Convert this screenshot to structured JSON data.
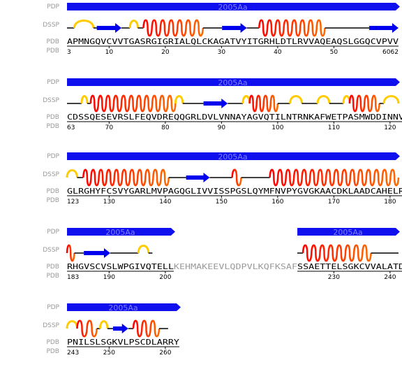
{
  "colors": {
    "domain_bar": "#1010ee",
    "domain_label": "#7f7fff",
    "helix_stops": [
      "#ff0000",
      "#ff6a00"
    ],
    "turn": "#ffcc00",
    "strand": "#0000ee",
    "coil": "#000000",
    "track_label": "#999999"
  },
  "track_labels": {
    "pdp": "PDP",
    "dssp": "DSSP",
    "pdb": "PDB"
  },
  "blocks": [
    {
      "segments": [
        {
          "seq": "APMNGQVCVVTGASRGIGRIALQLCKAGATVYITGRHLDTLRVVAQEAQSLGGQCVPVV",
          "gap": false
        }
      ],
      "numbers": [
        {
          "text": "3",
          "col": 0,
          "anchor": "start"
        },
        {
          "text": "10",
          "col": 7,
          "anchor": "middle"
        },
        {
          "text": "20",
          "col": 17,
          "anchor": "middle"
        },
        {
          "text": "30",
          "col": 27,
          "anchor": "middle"
        },
        {
          "text": "40",
          "col": 37,
          "anchor": "middle"
        },
        {
          "text": "50",
          "col": 47,
          "anchor": "middle"
        },
        {
          "text": "6062",
          "col": 58.5,
          "anchor": "end"
        }
      ],
      "domains": [
        {
          "label": "2005Aa",
          "start": 0,
          "end": 59
        }
      ],
      "dssp": [
        {
          "type": "coil",
          "start": 0,
          "end": 1.3
        },
        {
          "type": "turn",
          "start": 1.3,
          "end": 4.7
        },
        {
          "type": "coil",
          "start": 4.7,
          "end": 5.3
        },
        {
          "type": "strand",
          "start": 5.3,
          "end": 9.7
        },
        {
          "type": "coil",
          "start": 9.7,
          "end": 11.2
        },
        {
          "type": "turn",
          "start": 11.2,
          "end": 12.6
        },
        {
          "type": "coil",
          "start": 12.6,
          "end": 13.6
        },
        {
          "type": "helix",
          "start": 13.6,
          "end": 24.2
        },
        {
          "type": "coil",
          "start": 24.2,
          "end": 27.6
        },
        {
          "type": "strand",
          "start": 27.6,
          "end": 32.0
        },
        {
          "type": "coil",
          "start": 32.0,
          "end": 34.2
        },
        {
          "type": "helix",
          "start": 34.2,
          "end": 45.9
        },
        {
          "type": "coil",
          "start": 45.9,
          "end": 53.8
        },
        {
          "type": "strand",
          "start": 53.8,
          "end": 59.0
        }
      ]
    },
    {
      "segments": [
        {
          "seq": "CDSSQESEVRSLFEQVDREQQGRLDVLVNNAYAGVQTILNTRNKAFWETPASMWDDINNV",
          "gap": false
        }
      ],
      "numbers": [
        {
          "text": "63",
          "col": 0,
          "anchor": "start"
        },
        {
          "text": "70",
          "col": 7,
          "anchor": "middle"
        },
        {
          "text": "80",
          "col": 17,
          "anchor": "middle"
        },
        {
          "text": "90",
          "col": 27,
          "anchor": "middle"
        },
        {
          "text": "100",
          "col": 37,
          "anchor": "middle"
        },
        {
          "text": "110",
          "col": 47,
          "anchor": "middle"
        },
        {
          "text": "120",
          "col": 57,
          "anchor": "middle"
        }
      ],
      "domains": [
        {
          "label": "2005Aa",
          "start": 0,
          "end": 59
        }
      ],
      "dssp": [
        {
          "type": "coil",
          "start": 0,
          "end": 2.6
        },
        {
          "type": "turn",
          "start": 2.6,
          "end": 3.6
        },
        {
          "type": "coil",
          "start": 3.6,
          "end": 4.2
        },
        {
          "type": "helix",
          "start": 4.2,
          "end": 19.3
        },
        {
          "type": "turn",
          "start": 19.3,
          "end": 20.6
        },
        {
          "type": "coil",
          "start": 20.6,
          "end": 24.3
        },
        {
          "type": "strand",
          "start": 24.3,
          "end": 28.6
        },
        {
          "type": "coil",
          "start": 28.6,
          "end": 31.3
        },
        {
          "type": "turn",
          "start": 31.3,
          "end": 32.5
        },
        {
          "type": "helix",
          "start": 32.5,
          "end": 37.5
        },
        {
          "type": "coil",
          "start": 37.5,
          "end": 39.7
        },
        {
          "type": "turn",
          "start": 39.7,
          "end": 41.8
        },
        {
          "type": "coil",
          "start": 41.8,
          "end": 44.6
        },
        {
          "type": "turn",
          "start": 44.6,
          "end": 46.7
        },
        {
          "type": "coil",
          "start": 46.7,
          "end": 49.2
        },
        {
          "type": "turn",
          "start": 49.2,
          "end": 50.3
        },
        {
          "type": "helix",
          "start": 50.3,
          "end": 55.6
        },
        {
          "type": "coil",
          "start": 55.6,
          "end": 56.4
        },
        {
          "type": "turn",
          "start": 56.4,
          "end": 59.0
        }
      ]
    },
    {
      "segments": [
        {
          "seq": "GLRGHYFCSVYGARLMVPAGQGLIVVISSPGSLQYMFNVPYGVGKAACDKLAADCAHELR",
          "gap": false
        }
      ],
      "numbers": [
        {
          "text": "123",
          "col": 0,
          "anchor": "start"
        },
        {
          "text": "130",
          "col": 7,
          "anchor": "middle"
        },
        {
          "text": "140",
          "col": 17,
          "anchor": "middle"
        },
        {
          "text": "150",
          "col": 27,
          "anchor": "middle"
        },
        {
          "text": "160",
          "col": 37,
          "anchor": "middle"
        },
        {
          "text": "170",
          "col": 47,
          "anchor": "middle"
        },
        {
          "text": "180",
          "col": 57,
          "anchor": "middle"
        }
      ],
      "domains": [
        {
          "label": "2005Aa",
          "start": 0,
          "end": 59
        }
      ],
      "dssp": [
        {
          "type": "turn",
          "start": 0,
          "end": 1.8
        },
        {
          "type": "coil",
          "start": 1.8,
          "end": 2.9
        },
        {
          "type": "helix",
          "start": 2.9,
          "end": 18.1
        },
        {
          "type": "coil",
          "start": 18.1,
          "end": 21.2
        },
        {
          "type": "strand",
          "start": 21.2,
          "end": 25.4
        },
        {
          "type": "coil",
          "start": 25.4,
          "end": 29.4
        },
        {
          "type": "helix",
          "start": 29.4,
          "end": 31.0
        },
        {
          "type": "coil",
          "start": 31.0,
          "end": 36.1
        },
        {
          "type": "helix",
          "start": 36.1,
          "end": 59.0
        }
      ]
    },
    {
      "segments": [
        {
          "seq": "RHGVSCVSLWPGIVQTELL",
          "gap": false
        },
        {
          "seq": "KEHMAKEEVLQDPVLKQFKSAF",
          "gap": true
        },
        {
          "seq": "SSAETTELSGKCVVALATD",
          "gap": false
        }
      ],
      "numbers": [
        {
          "text": "183",
          "col": 0,
          "anchor": "start"
        },
        {
          "text": "190",
          "col": 7,
          "anchor": "middle"
        },
        {
          "text": "200",
          "col": 17,
          "anchor": "middle"
        },
        {
          "text": "230",
          "col": 47,
          "anchor": "middle"
        },
        {
          "text": "240",
          "col": 57,
          "anchor": "middle"
        }
      ],
      "domains": [
        {
          "label": "2005Aa",
          "start": 0,
          "end": 19
        },
        {
          "label": "2005Aa",
          "start": 41,
          "end": 59
        }
      ],
      "dssp": [
        {
          "type": "helix",
          "start": 0,
          "end": 1.3
        },
        {
          "type": "coil",
          "start": 1.3,
          "end": 3.0
        },
        {
          "type": "strand",
          "start": 3.0,
          "end": 7.7
        },
        {
          "type": "coil",
          "start": 7.7,
          "end": 12.7
        },
        {
          "type": "turn",
          "start": 12.7,
          "end": 14.5
        },
        {
          "type": "coil",
          "start": 14.5,
          "end": 15.2
        },
        {
          "type": "coil",
          "start": 41.0,
          "end": 42.0
        },
        {
          "type": "helix",
          "start": 42.0,
          "end": 54.1
        },
        {
          "type": "coil",
          "start": 54.1,
          "end": 59.0
        }
      ]
    },
    {
      "segments": [
        {
          "seq": "PNILSLSGKVLPSCDLARRY",
          "gap": false
        }
      ],
      "numbers": [
        {
          "text": "243",
          "col": 0,
          "anchor": "start"
        },
        {
          "text": "250",
          "col": 7,
          "anchor": "middle"
        },
        {
          "text": "260",
          "col": 17,
          "anchor": "middle"
        }
      ],
      "domains": [
        {
          "label": "2005Aa",
          "start": 0,
          "end": 20
        }
      ],
      "dssp": [
        {
          "type": "turn",
          "start": 0,
          "end": 1.8
        },
        {
          "type": "helix",
          "start": 1.8,
          "end": 5.3
        },
        {
          "type": "coil",
          "start": 5.3,
          "end": 5.9
        },
        {
          "type": "turn",
          "start": 5.9,
          "end": 7.2
        },
        {
          "type": "coil",
          "start": 7.2,
          "end": 8.2
        },
        {
          "type": "strand",
          "start": 8.2,
          "end": 10.9
        },
        {
          "type": "coil",
          "start": 10.9,
          "end": 11.8
        },
        {
          "type": "helix",
          "start": 11.8,
          "end": 16.4
        },
        {
          "type": "coil",
          "start": 16.4,
          "end": 18.0
        }
      ]
    }
  ]
}
